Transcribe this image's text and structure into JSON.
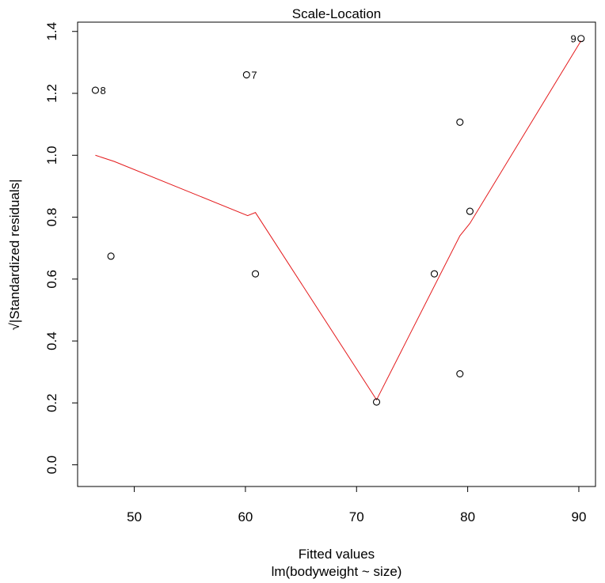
{
  "chart_data": {
    "type": "scatter",
    "title": "Scale-Location",
    "xlabel": "Fitted values",
    "subtitle": "lm(bodyweight ~ size)",
    "ylabel": "√|Standardized residuals|",
    "xlim": [
      44.9,
      91.5
    ],
    "ylim": [
      -0.07,
      1.43
    ],
    "x_ticks": [
      50,
      60,
      70,
      80,
      90
    ],
    "x_tick_labels": [
      "50",
      "60",
      "70",
      "80",
      "90"
    ],
    "y_ticks": [
      0.0,
      0.2,
      0.4,
      0.6,
      0.8,
      1.0,
      1.2,
      1.4
    ],
    "y_tick_labels": [
      "0.0",
      "0.2",
      "0.4",
      "0.6",
      "0.8",
      "1.0",
      "1.2",
      "1.4"
    ],
    "points": [
      {
        "x": 46.5,
        "y": 1.21,
        "label": "8"
      },
      {
        "x": 47.9,
        "y": 0.674,
        "label": ""
      },
      {
        "x": 60.1,
        "y": 1.26,
        "label": "7"
      },
      {
        "x": 60.9,
        "y": 0.617,
        "label": ""
      },
      {
        "x": 71.8,
        "y": 0.203,
        "label": ""
      },
      {
        "x": 77.0,
        "y": 0.617,
        "label": ""
      },
      {
        "x": 79.3,
        "y": 1.107,
        "label": ""
      },
      {
        "x": 79.3,
        "y": 0.294,
        "label": ""
      },
      {
        "x": 80.2,
        "y": 0.819,
        "label": ""
      },
      {
        "x": 90.2,
        "y": 1.377,
        "label": "9"
      }
    ],
    "smooth_line": {
      "color": "#e41a1c",
      "points": [
        [
          46.5,
          1.0
        ],
        [
          48.2,
          0.98
        ],
        [
          60.2,
          0.805
        ],
        [
          60.9,
          0.815
        ],
        [
          71.8,
          0.21
        ],
        [
          79.3,
          0.74
        ],
        [
          80.2,
          0.78
        ],
        [
          90.2,
          1.37
        ]
      ]
    },
    "point_style": "open-circle"
  }
}
